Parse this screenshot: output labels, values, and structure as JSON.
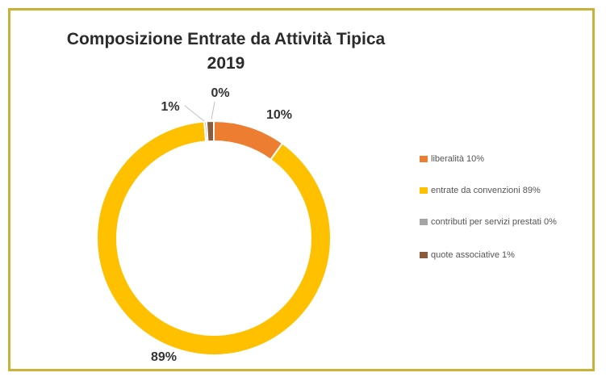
{
  "chart_data": {
    "type": "pie",
    "variant": "doughnut",
    "title": "Composizione Entrate da Attività Tipica",
    "subtitle": "2019",
    "legend_position": "right",
    "slices": [
      {
        "label": "liberalità",
        "value": 10,
        "display": "10%",
        "legend": "liberalità  10%",
        "color": "#ed7d31"
      },
      {
        "label": "entrate da convenzioni",
        "value": 89,
        "display": "89%",
        "legend": "entrate da convenzioni  89%",
        "color": "#ffc000"
      },
      {
        "label": "contributi per servizi prestati",
        "value": 0.3,
        "display": "0%",
        "legend": "contributi per servizi prestati 0%",
        "color": "#a5a5a5"
      },
      {
        "label": "quote associative",
        "value": 1,
        "display": "1%",
        "legend": "quote associative 1%",
        "color": "#8a5a3a"
      }
    ]
  }
}
